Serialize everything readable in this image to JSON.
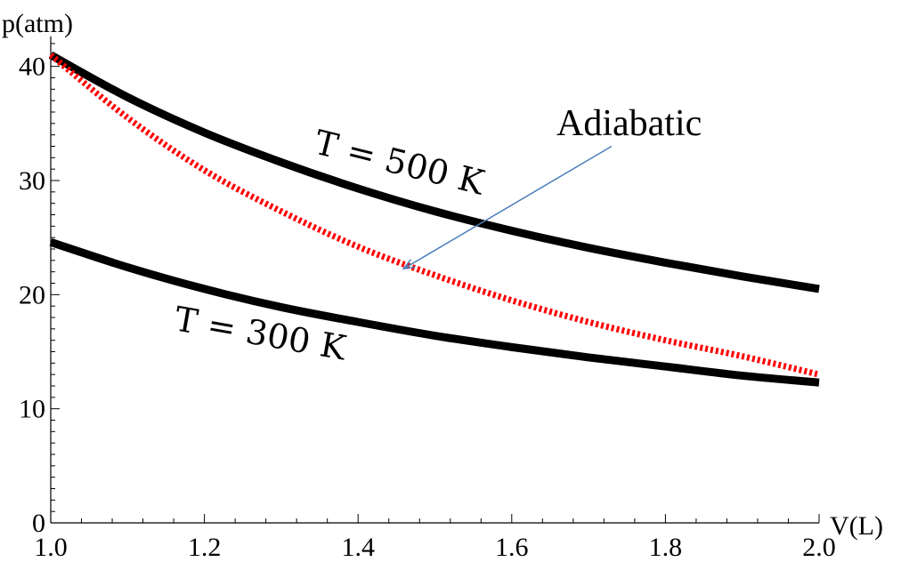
{
  "chart_data": {
    "type": "line",
    "title": "",
    "xlabel": "V(L)",
    "ylabel": "p(atm)",
    "xlim": [
      1.0,
      2.0
    ],
    "ylim": [
      0,
      42
    ],
    "xticks": [
      1.0,
      1.2,
      1.4,
      1.6,
      1.8,
      2.0
    ],
    "xtick_labels": [
      "1.0",
      "1.2",
      "1.4",
      "1.6",
      "1.8",
      "2.0"
    ],
    "yticks": [
      0,
      10,
      20,
      30,
      40
    ],
    "ytick_labels": [
      "0",
      "10",
      "20",
      "30",
      "40"
    ],
    "grid": false,
    "series": [
      {
        "name": "T = 500 K",
        "color": "#000000",
        "style": "solid",
        "x": [
          1.0,
          1.1,
          1.2,
          1.3,
          1.4,
          1.5,
          1.6,
          1.7,
          1.8,
          1.9,
          2.0
        ],
        "y": [
          41.0,
          37.3,
          34.2,
          31.6,
          29.3,
          27.3,
          25.6,
          24.1,
          22.8,
          21.6,
          20.5
        ]
      },
      {
        "name": "T = 300 K",
        "color": "#000000",
        "style": "solid",
        "x": [
          1.0,
          1.1,
          1.2,
          1.3,
          1.4,
          1.5,
          1.6,
          1.7,
          1.8,
          1.9,
          2.0
        ],
        "y": [
          24.6,
          22.4,
          20.5,
          18.9,
          17.6,
          16.4,
          15.4,
          14.5,
          13.7,
          12.9,
          12.3
        ]
      },
      {
        "name": "Adiabatic",
        "color": "#ff0000",
        "style": "dotted",
        "x": [
          1.0,
          1.1,
          1.2,
          1.3,
          1.4,
          1.5,
          1.6,
          1.7,
          1.8,
          1.9,
          2.0
        ],
        "y": [
          41.0,
          35.5,
          30.9,
          27.3,
          24.2,
          21.7,
          19.5,
          17.6,
          16.0,
          14.6,
          13.0
        ]
      }
    ],
    "annotations": [
      {
        "text": "T = 500 K",
        "at": [
          1.45,
          30.6
        ],
        "rotate": 14
      },
      {
        "text": "T = 300 K",
        "at": [
          1.27,
          15.6
        ],
        "rotate": 10
      },
      {
        "text": "Adiabatic",
        "arrow_from": [
          1.73,
          33.0
        ],
        "arrow_to": [
          1.46,
          22.3
        ],
        "arrow_color": "#4a7ebb"
      }
    ]
  }
}
